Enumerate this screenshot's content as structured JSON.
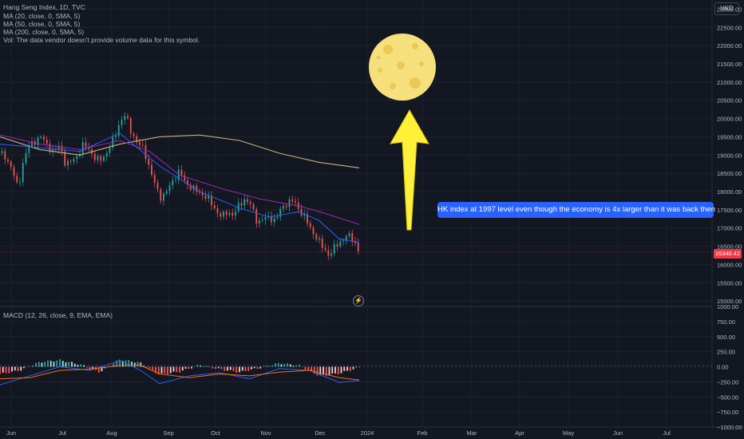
{
  "legend": {
    "title": "Hang Seng Index, 1D, TVC",
    "ma20": "MA (20, close, 0, SMA, 5)",
    "ma50": "MA (50, close, 0, SMA, 5)",
    "ma200": "MA (200, close, 0, SMA, 5)",
    "vol": "Vol: The data vendor doesn't provide volume data for this symbol.",
    "macd": "MACD (12, 26, close, 9, EMA, EMA)"
  },
  "currency": "HKD",
  "last_price": "16340.42",
  "annotation": "HK index at 1997 level even though the economy is 4x larger than it was back then",
  "colors": {
    "up": "#26a69a",
    "down": "#ef5350",
    "ma_fast": "#2962ff",
    "ma_mid": "#9c27b0",
    "ma_slow": "#c9b17a",
    "moon": "#f5e07c",
    "arrow": "#fff03a",
    "annotation": "#2962ff"
  },
  "chart_data": [
    {
      "type": "candlestick",
      "x_labels": [
        "Jun",
        "Jul",
        "Aug",
        "Sep",
        "Oct",
        "Nov",
        "Dec",
        "2024",
        "Feb",
        "Mar",
        "Apr",
        "May",
        "Jun",
        "Jul"
      ],
      "y_ticks": [
        "23000.00",
        "22500.00",
        "22000.00",
        "21500.00",
        "21000.00",
        "20500.00",
        "20000.00",
        "19500.00",
        "19000.00",
        "18500.00",
        "18000.00",
        "17500.00",
        "17000.00",
        "16500.00",
        "16000.00",
        "15500.00",
        "15000.00"
      ],
      "ylim": [
        14850,
        23250
      ],
      "price_path": [
        [
          0,
          19050
        ],
        [
          3,
          18950
        ],
        [
          6,
          18600
        ],
        [
          9,
          18100
        ],
        [
          12,
          18900
        ],
        [
          15,
          19300
        ],
        [
          18,
          19400
        ],
        [
          21,
          19500
        ],
        [
          24,
          19250
        ],
        [
          27,
          19050
        ],
        [
          30,
          19300
        ],
        [
          33,
          18700
        ],
        [
          36,
          18850
        ],
        [
          39,
          19000
        ],
        [
          42,
          19300
        ],
        [
          45,
          19150
        ],
        [
          48,
          18850
        ],
        [
          51,
          18900
        ],
        [
          54,
          19100
        ],
        [
          57,
          19450
        ],
        [
          60,
          19900
        ],
        [
          63,
          20100
        ],
        [
          66,
          19600
        ],
        [
          69,
          19300
        ],
        [
          72,
          19200
        ],
        [
          75,
          18600
        ],
        [
          78,
          18150
        ],
        [
          81,
          17800
        ],
        [
          84,
          18050
        ],
        [
          87,
          18350
        ],
        [
          90,
          18550
        ],
        [
          93,
          18250
        ],
        [
          96,
          18100
        ],
        [
          99,
          18000
        ],
        [
          102,
          17900
        ],
        [
          105,
          17750
        ],
        [
          108,
          17500
        ],
        [
          111,
          17300
        ],
        [
          114,
          17450
        ],
        [
          117,
          17350
        ],
        [
          120,
          17650
        ],
        [
          123,
          17800
        ],
        [
          126,
          17600
        ],
        [
          129,
          17150
        ],
        [
          132,
          17250
        ],
        [
          135,
          17300
        ],
        [
          138,
          17200
        ],
        [
          141,
          17550
        ],
        [
          144,
          17700
        ],
        [
          147,
          17750
        ],
        [
          150,
          17500
        ],
        [
          153,
          17250
        ],
        [
          156,
          16950
        ],
        [
          159,
          16700
        ],
        [
          162,
          16450
        ],
        [
          165,
          16250
        ],
        [
          168,
          16500
        ],
        [
          171,
          16650
        ],
        [
          174,
          16800
        ],
        [
          177,
          16700
        ],
        [
          180,
          16340
        ]
      ],
      "ma_slow": [
        [
          0,
          19500
        ],
        [
          20,
          19150
        ],
        [
          40,
          19000
        ],
        [
          60,
          19300
        ],
        [
          80,
          19500
        ],
        [
          100,
          19550
        ],
        [
          120,
          19400
        ],
        [
          140,
          19050
        ],
        [
          160,
          18800
        ],
        [
          180,
          18650
        ]
      ],
      "ma_mid": [
        [
          0,
          19550
        ],
        [
          20,
          19300
        ],
        [
          40,
          19150
        ],
        [
          60,
          19400
        ],
        [
          75,
          19100
        ],
        [
          90,
          18450
        ],
        [
          110,
          18100
        ],
        [
          130,
          17800
        ],
        [
          150,
          17600
        ],
        [
          160,
          17450
        ],
        [
          180,
          17100
        ]
      ],
      "ma_fast": [
        [
          0,
          19300
        ],
        [
          20,
          19200
        ],
        [
          40,
          19100
        ],
        [
          60,
          19600
        ],
        [
          80,
          18700
        ],
        [
          100,
          18000
        ],
        [
          120,
          17550
        ],
        [
          135,
          17300
        ],
        [
          150,
          17450
        ],
        [
          160,
          17200
        ],
        [
          170,
          16700
        ],
        [
          180,
          16600
        ]
      ]
    },
    {
      "type": "macd",
      "y_ticks": [
        "1000.00",
        "750.00",
        "500.00",
        "250.00",
        "0.00",
        "−250.00",
        "−500.00",
        "−750.00",
        "−1000.00"
      ],
      "ylim": [
        -1000,
        1000
      ],
      "histogram": [
        [
          0,
          -120
        ],
        [
          10,
          -60
        ],
        [
          20,
          80
        ],
        [
          30,
          110
        ],
        [
          40,
          40
        ],
        [
          50,
          -90
        ],
        [
          60,
          120
        ],
        [
          70,
          70
        ],
        [
          75,
          -40
        ],
        [
          80,
          -130
        ],
        [
          90,
          -80
        ],
        [
          100,
          30
        ],
        [
          110,
          -40
        ],
        [
          120,
          -90
        ],
        [
          130,
          -20
        ],
        [
          140,
          60
        ],
        [
          150,
          20
        ],
        [
          160,
          -150
        ],
        [
          170,
          -110
        ],
        [
          180,
          -10
        ]
      ],
      "macd_line": [
        [
          0,
          -300
        ],
        [
          15,
          -150
        ],
        [
          30,
          0
        ],
        [
          45,
          -60
        ],
        [
          60,
          100
        ],
        [
          70,
          -50
        ],
        [
          80,
          -280
        ],
        [
          95,
          -150
        ],
        [
          110,
          -100
        ],
        [
          125,
          -200
        ],
        [
          140,
          -30
        ],
        [
          155,
          -60
        ],
        [
          170,
          -260
        ],
        [
          180,
          -230
        ]
      ],
      "signal_line": [
        [
          0,
          -200
        ],
        [
          15,
          -180
        ],
        [
          30,
          -60
        ],
        [
          45,
          -40
        ],
        [
          60,
          20
        ],
        [
          70,
          30
        ],
        [
          80,
          -120
        ],
        [
          95,
          -180
        ],
        [
          110,
          -120
        ],
        [
          125,
          -150
        ],
        [
          140,
          -90
        ],
        [
          155,
          -60
        ],
        [
          170,
          -180
        ],
        [
          180,
          -220
        ]
      ]
    }
  ]
}
